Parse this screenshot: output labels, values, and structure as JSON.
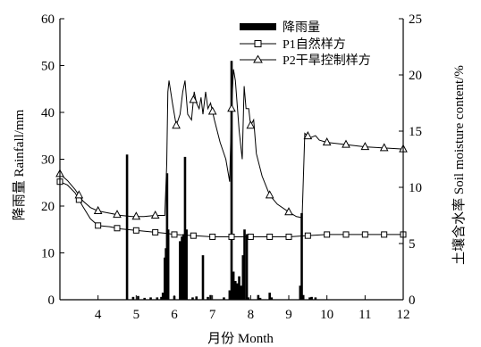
{
  "chart_data": {
    "type": "bar+line",
    "xlabel": "月份 Month",
    "ylabel_left": "降雨量 Rainfall/mm",
    "ylabel_right": "土壤含水率 Soil moisture content/%",
    "xlim": [
      3,
      12
    ],
    "ylim_left": [
      0,
      60
    ],
    "ylim_right": [
      0,
      25
    ],
    "x_ticks": [
      4,
      5,
      6,
      7,
      8,
      9,
      10,
      11,
      12
    ],
    "y_left_ticks": [
      0,
      10,
      20,
      30,
      40,
      50,
      60
    ],
    "y_right_ticks": [
      0,
      5,
      10,
      15,
      20,
      25
    ],
    "legend_position": "top-center",
    "grid": false,
    "legend": [
      {
        "label": "降雨量",
        "type": "bar"
      },
      {
        "label": "P1自然样方",
        "type": "line-square"
      },
      {
        "label": "P2干旱控制样方",
        "type": "line-triangle"
      }
    ],
    "rainfall": {
      "name": "降雨量",
      "axis": "left",
      "points": [
        [
          4.76,
          31
        ],
        [
          4.92,
          0.6
        ],
        [
          5.05,
          0.8
        ],
        [
          5.22,
          0.4
        ],
        [
          5.38,
          0.5
        ],
        [
          5.55,
          0.5
        ],
        [
          5.66,
          0.6
        ],
        [
          5.7,
          1.5
        ],
        [
          5.75,
          9
        ],
        [
          5.78,
          11
        ],
        [
          5.81,
          27
        ],
        [
          5.84,
          15
        ],
        [
          6.0,
          0.8
        ],
        [
          6.15,
          12.5
        ],
        [
          6.2,
          13.5
        ],
        [
          6.24,
          14
        ],
        [
          6.28,
          30.5
        ],
        [
          6.32,
          15
        ],
        [
          6.48,
          0.5
        ],
        [
          6.58,
          0.7
        ],
        [
          6.75,
          9.5
        ],
        [
          6.88,
          0.6
        ],
        [
          6.95,
          1
        ],
        [
          7.3,
          0.5
        ],
        [
          7.45,
          2
        ],
        [
          7.5,
          51
        ],
        [
          7.55,
          6
        ],
        [
          7.6,
          4
        ],
        [
          7.65,
          3.5
        ],
        [
          7.7,
          5
        ],
        [
          7.75,
          3
        ],
        [
          7.8,
          9.5
        ],
        [
          7.84,
          15
        ],
        [
          7.9,
          14
        ],
        [
          7.94,
          0.5
        ],
        [
          8.2,
          1
        ],
        [
          8.25,
          0.4
        ],
        [
          8.5,
          1.5
        ],
        [
          8.55,
          0.5
        ],
        [
          9.3,
          3
        ],
        [
          9.34,
          18.5
        ],
        [
          9.38,
          1
        ],
        [
          9.55,
          0.5
        ],
        [
          9.6,
          0.6
        ],
        [
          9.7,
          0.5
        ]
      ]
    },
    "series": [
      {
        "name": "P1自然样方",
        "axis": "right",
        "marker": "square",
        "points": [
          [
            3.0,
            10.5
          ],
          [
            3.2,
            10.2
          ],
          [
            3.4,
            9.5
          ],
          [
            3.6,
            8.3
          ],
          [
            3.8,
            7.2
          ],
          [
            4.0,
            6.6
          ],
          [
            4.3,
            6.5
          ],
          [
            4.6,
            6.3
          ],
          [
            4.9,
            6.2
          ],
          [
            5.2,
            6.1
          ],
          [
            5.5,
            6.0
          ],
          [
            5.8,
            5.9
          ],
          [
            6.0,
            5.8
          ],
          [
            6.5,
            5.7
          ],
          [
            7.0,
            5.6
          ],
          [
            7.5,
            5.6
          ],
          [
            8.0,
            5.6
          ],
          [
            8.5,
            5.6
          ],
          [
            9.0,
            5.6
          ],
          [
            9.5,
            5.7
          ],
          [
            10.0,
            5.8
          ],
          [
            10.5,
            5.8
          ],
          [
            11.0,
            5.8
          ],
          [
            11.5,
            5.8
          ],
          [
            12.0,
            5.8
          ]
        ],
        "marker_x": [
          3.0,
          3.5,
          4.0,
          4.5,
          5.0,
          5.5,
          6.0,
          6.5,
          7.0,
          7.5,
          8.0,
          8.5,
          9.0,
          9.5,
          10.0,
          10.5,
          11.0,
          11.5,
          12.0
        ]
      },
      {
        "name": "P2干旱控制样方",
        "axis": "right",
        "marker": "triangle",
        "points": [
          [
            3.0,
            11.2
          ],
          [
            3.2,
            10.6
          ],
          [
            3.4,
            9.8
          ],
          [
            3.6,
            8.8
          ],
          [
            3.8,
            8.2
          ],
          [
            4.0,
            7.9
          ],
          [
            4.3,
            7.7
          ],
          [
            4.6,
            7.5
          ],
          [
            4.9,
            7.4
          ],
          [
            5.2,
            7.4
          ],
          [
            5.5,
            7.5
          ],
          [
            5.75,
            7.5
          ],
          [
            5.8,
            12
          ],
          [
            5.83,
            18.5
          ],
          [
            5.86,
            19.5
          ],
          [
            5.95,
            17.5
          ],
          [
            6.05,
            15.5
          ],
          [
            6.15,
            16.5
          ],
          [
            6.22,
            18.5
          ],
          [
            6.28,
            19.5
          ],
          [
            6.35,
            16.5
          ],
          [
            6.45,
            16
          ],
          [
            6.52,
            18.5
          ],
          [
            6.58,
            17.5
          ],
          [
            6.65,
            17
          ],
          [
            6.7,
            18
          ],
          [
            6.75,
            16.5
          ],
          [
            6.82,
            18.5
          ],
          [
            6.88,
            17
          ],
          [
            6.95,
            17.5
          ],
          [
            7.05,
            16
          ],
          [
            7.2,
            14
          ],
          [
            7.35,
            12.5
          ],
          [
            7.45,
            10.5
          ],
          [
            7.5,
            17
          ],
          [
            7.55,
            20.5
          ],
          [
            7.6,
            19.5
          ],
          [
            7.7,
            15
          ],
          [
            7.78,
            12.5
          ],
          [
            7.83,
            19
          ],
          [
            7.88,
            17
          ],
          [
            7.95,
            17
          ],
          [
            8.0,
            15.5
          ],
          [
            8.08,
            16
          ],
          [
            8.15,
            13
          ],
          [
            8.3,
            11
          ],
          [
            8.5,
            9.3
          ],
          [
            8.7,
            8.5
          ],
          [
            9.0,
            7.8
          ],
          [
            9.2,
            7.4
          ],
          [
            9.35,
            7.3
          ],
          [
            9.42,
            14.8
          ],
          [
            9.55,
            14.4
          ],
          [
            9.7,
            14.6
          ],
          [
            9.8,
            14.2
          ],
          [
            10.0,
            14.0
          ],
          [
            10.5,
            13.8
          ],
          [
            11.0,
            13.6
          ],
          [
            11.5,
            13.5
          ],
          [
            12.0,
            13.4
          ]
        ],
        "marker_x": [
          3.0,
          3.5,
          4.0,
          4.5,
          5.0,
          5.5,
          6.05,
          6.5,
          7.0,
          7.5,
          8.0,
          8.5,
          9.0,
          9.5,
          10.0,
          10.5,
          11.0,
          11.5,
          12.0
        ]
      }
    ]
  }
}
